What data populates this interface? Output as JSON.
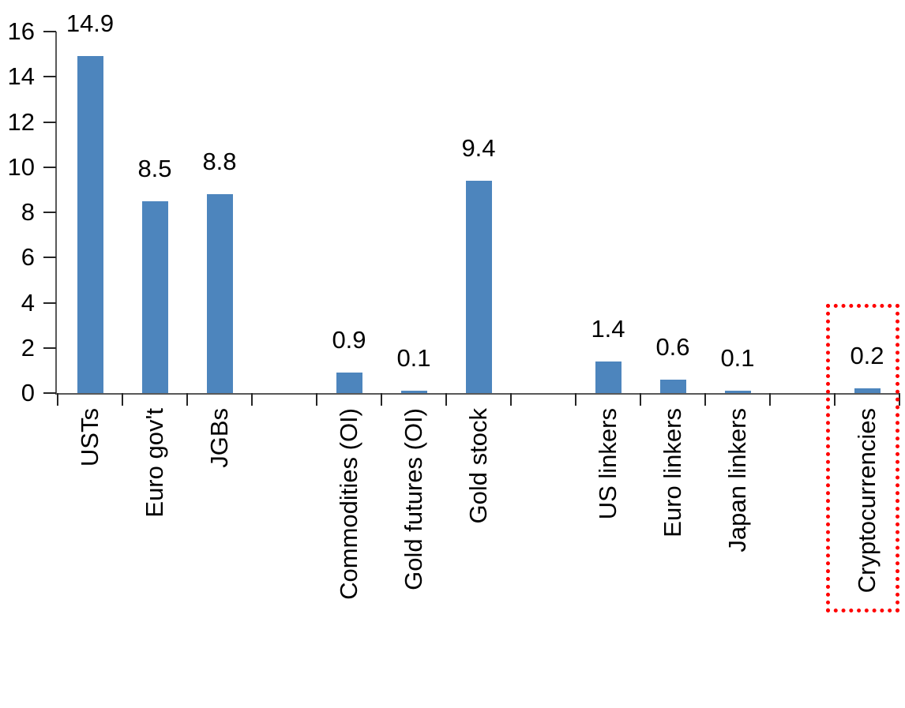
{
  "chart_data": {
    "type": "bar",
    "title": "",
    "xlabel": "",
    "ylabel": "",
    "categories": [
      "USTs",
      "Euro gov't",
      "JGBs",
      "",
      "Commodities (OI)",
      "Gold futures (OI)",
      "Gold stock",
      "",
      "US linkers",
      "Euro linkers",
      "Japan linkers",
      "",
      "Cryptocurrencies"
    ],
    "values": [
      14.9,
      8.5,
      8.8,
      null,
      0.9,
      0.1,
      9.4,
      null,
      1.4,
      0.6,
      0.1,
      null,
      0.2
    ],
    "value_labels": [
      "14.9",
      "8.5",
      "8.8",
      "",
      "0.9",
      "0.1",
      "9.4",
      "",
      "1.4",
      "0.6",
      "0.1",
      "",
      "0.2"
    ],
    "ylim": [
      0,
      16
    ],
    "yticks": [
      0,
      2,
      4,
      6,
      8,
      10,
      12,
      14,
      16
    ],
    "grid": false,
    "legend": null,
    "bar_color": "#4D85BD",
    "axis_color": "#595959",
    "tick_color": "#262626",
    "text_color": "#000000",
    "highlight": {
      "category": "Cryptocurrencies",
      "category_index": 12,
      "shape": "dotted-rectangle",
      "color": "#FF0000"
    }
  }
}
